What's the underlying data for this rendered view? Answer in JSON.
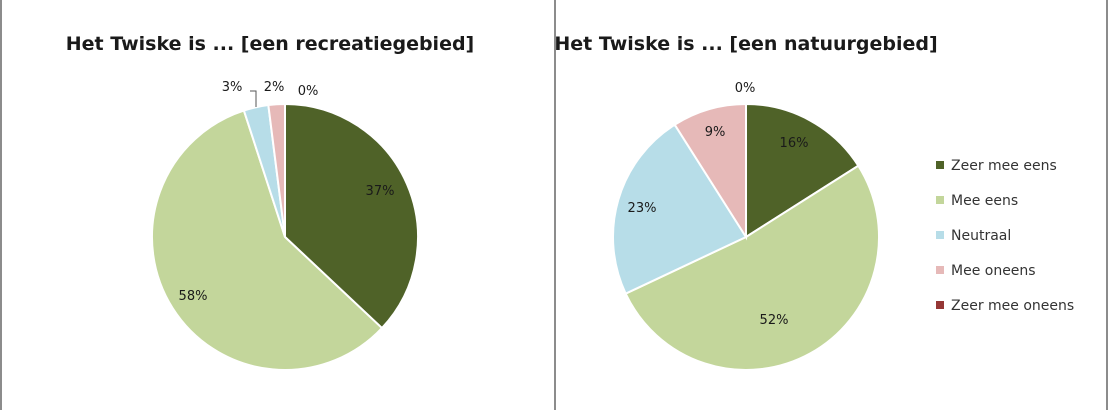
{
  "chart_data": [
    {
      "type": "pie",
      "title": "Het Twiske is ... [een recreatiegebied]",
      "categories": [
        "Zeer mee eens",
        "Mee eens",
        "Neutraal",
        "Mee oneens",
        "Zeer mee oneens"
      ],
      "values": [
        37,
        58,
        3,
        2,
        0
      ],
      "labels": [
        "37%",
        "58%",
        "3%",
        "2%",
        "0%"
      ],
      "colors": [
        "#4f6228",
        "#c3d69b",
        "#b7dde8",
        "#e6b9b8",
        "#953735"
      ],
      "legend": "none"
    },
    {
      "type": "pie",
      "title": "Het Twiske is ... [een natuurgebied]",
      "categories": [
        "Zeer mee eens",
        "Mee eens",
        "Neutraal",
        "Mee oneens",
        "Zeer mee oneens"
      ],
      "values": [
        16,
        52,
        23,
        9,
        0
      ],
      "labels": [
        "16%",
        "52%",
        "23%",
        "9%",
        "0%"
      ],
      "colors": [
        "#4f6228",
        "#c3d69b",
        "#b7dde8",
        "#e6b9b8",
        "#953735"
      ],
      "legend": "right"
    }
  ]
}
